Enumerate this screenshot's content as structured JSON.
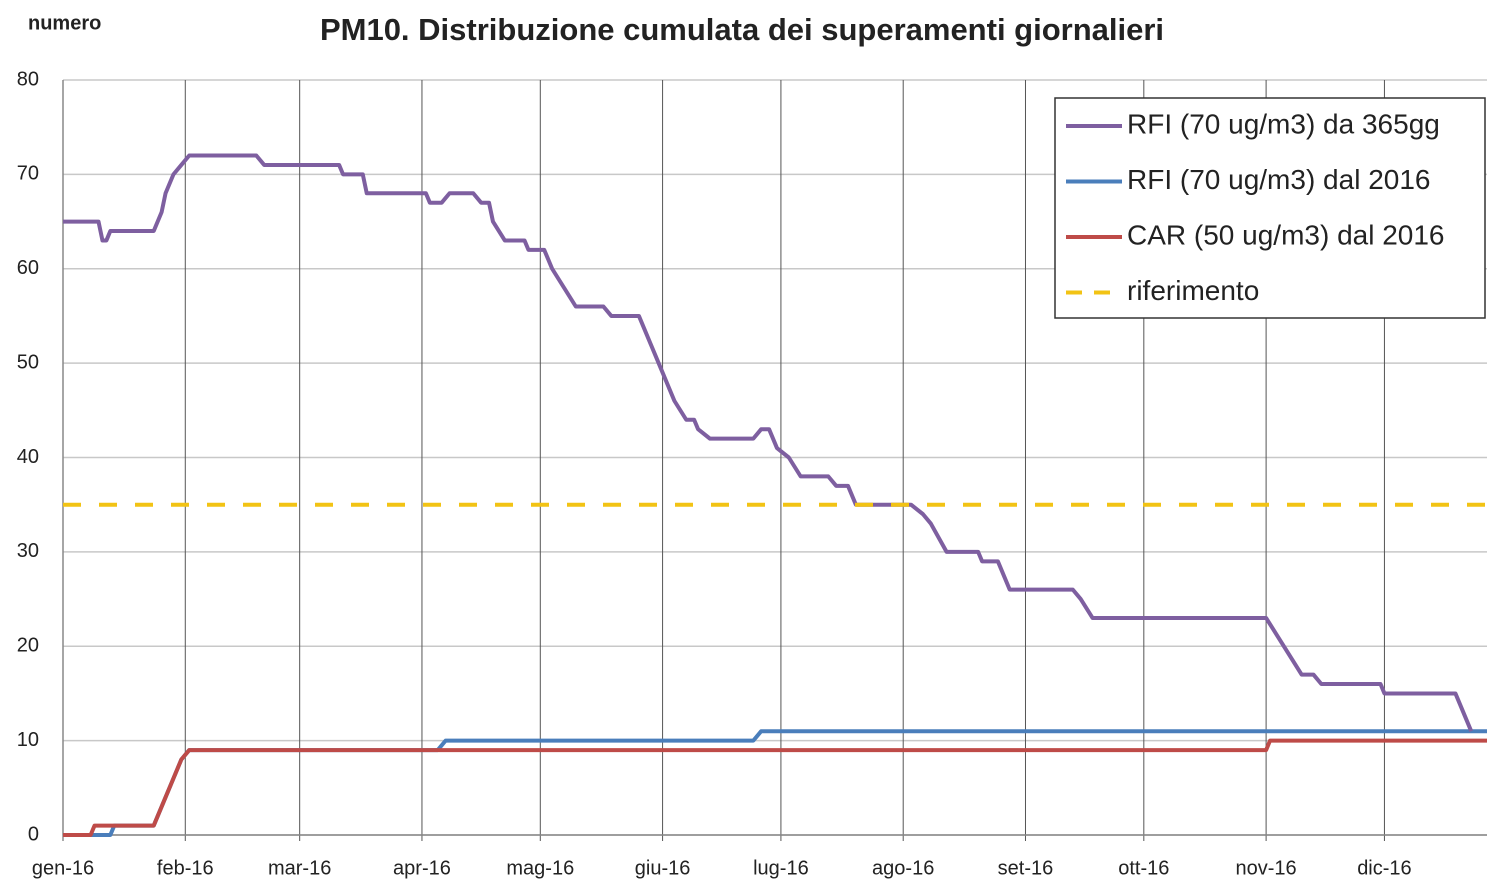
{
  "chart_data": {
    "type": "line",
    "title": "PM10. Distribuzione cumulata dei superamenti giornalieri",
    "ylabel": "numero",
    "xlim": [
      0,
      361
    ],
    "xticks": [
      {
        "value": 0,
        "label": "gen-16"
      },
      {
        "value": 31,
        "label": "feb-16"
      },
      {
        "value": 60,
        "label": "mar-16"
      },
      {
        "value": 91,
        "label": "apr-16"
      },
      {
        "value": 121,
        "label": "mag-16"
      },
      {
        "value": 152,
        "label": "giu-16"
      },
      {
        "value": 182,
        "label": "lug-16"
      },
      {
        "value": 213,
        "label": "ago-16"
      },
      {
        "value": 244,
        "label": "set-16"
      },
      {
        "value": 274,
        "label": "ott-16"
      },
      {
        "value": 305,
        "label": "nov-16"
      },
      {
        "value": 335,
        "label": "dic-16"
      }
    ],
    "ylim": [
      0,
      80
    ],
    "yticks": [
      0,
      10,
      20,
      30,
      40,
      50,
      60,
      70,
      80
    ],
    "grid": true,
    "legend": "top-right",
    "series": [
      {
        "name": "RFI (70 ug/m3) da 365gg",
        "color": "#7e5fa0",
        "x": [
          0,
          9,
          10,
          11,
          12,
          23,
          25,
          26,
          28,
          30,
          32,
          49,
          51,
          70,
          71,
          76,
          77,
          92,
          93,
          96,
          98,
          104,
          106,
          108,
          109,
          112,
          117,
          118,
          122,
          124,
          127,
          130,
          137,
          139,
          146,
          149,
          152,
          155,
          158,
          160,
          161,
          164,
          175,
          177,
          179,
          181,
          184,
          187,
          194,
          196,
          199,
          201,
          215,
          218,
          220,
          224,
          232,
          233,
          237,
          240,
          256,
          258,
          261,
          305,
          308,
          311,
          314,
          317,
          319,
          334,
          335,
          353,
          357
        ],
        "values": [
          65,
          65,
          63,
          63,
          64,
          64,
          66,
          68,
          70,
          71,
          72,
          72,
          71,
          71,
          70,
          70,
          68,
          68,
          67,
          67,
          68,
          68,
          67,
          67,
          65,
          63,
          63,
          62,
          62,
          60,
          58,
          56,
          56,
          55,
          55,
          52,
          49,
          46,
          44,
          44,
          43,
          42,
          42,
          43,
          43,
          41,
          40,
          38,
          38,
          37,
          37,
          35,
          35,
          34,
          33,
          30,
          30,
          29,
          29,
          26,
          26,
          25,
          23,
          23,
          21,
          19,
          17,
          17,
          16,
          16,
          15,
          15,
          11
        ]
      },
      {
        "name": "RFI (70 ug/m3) dal 2016",
        "color": "#4a7ebb",
        "x": [
          0,
          12,
          13,
          23,
          25,
          28,
          30,
          32,
          95,
          97,
          175,
          177,
          361
        ],
        "values": [
          0,
          0,
          1,
          1,
          3,
          6,
          8,
          9,
          9,
          10,
          10,
          11,
          11
        ]
      },
      {
        "name": "CAR (50 ug/m3) dal 2016",
        "color": "#be4b48",
        "x": [
          0,
          7,
          8,
          23,
          25,
          28,
          30,
          32,
          305,
          306,
          361
        ],
        "values": [
          0,
          0,
          1,
          1,
          3,
          6,
          8,
          9,
          9,
          10,
          10
        ]
      },
      {
        "name": "riferimento",
        "color": "#f2c314",
        "dashed": true,
        "x": [
          0,
          361
        ],
        "values": [
          35,
          35
        ]
      }
    ]
  }
}
